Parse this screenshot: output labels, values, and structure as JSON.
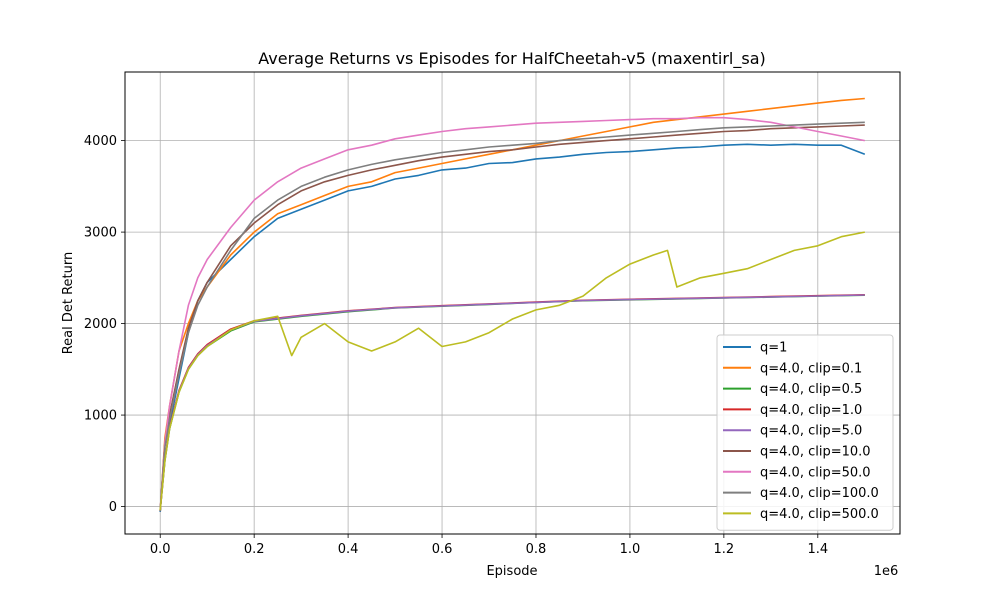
{
  "chart_data": {
    "type": "line",
    "title": "Average Returns vs Episodes for HalfCheetah-v5 (maxentirl_sa)",
    "xlabel": "Episode",
    "ylabel": "Real Det Return",
    "x_offset_label": "1e6",
    "xlim": [
      -0.075,
      1.575
    ],
    "ylim": [
      -300,
      4750
    ],
    "x_ticks": [
      0.0,
      0.2,
      0.4,
      0.6,
      0.8,
      1.0,
      1.2,
      1.4
    ],
    "x_tick_labels": [
      "0.0",
      "0.2",
      "0.4",
      "0.6",
      "0.8",
      "1.0",
      "1.2",
      "1.4"
    ],
    "y_ticks": [
      0,
      1000,
      2000,
      3000,
      4000
    ],
    "y_tick_labels": [
      "0",
      "1000",
      "2000",
      "3000",
      "4000"
    ],
    "grid": true,
    "legend_position": "lower-right",
    "series": [
      {
        "name": "q=1",
        "color": "#1f77b4",
        "x": [
          0,
          0.01,
          0.02,
          0.04,
          0.06,
          0.08,
          0.1,
          0.15,
          0.2,
          0.25,
          0.3,
          0.35,
          0.4,
          0.45,
          0.5,
          0.55,
          0.6,
          0.65,
          0.7,
          0.75,
          0.8,
          0.85,
          0.9,
          0.95,
          1.0,
          1.05,
          1.1,
          1.15,
          1.2,
          1.25,
          1.3,
          1.35,
          1.4,
          1.45,
          1.5
        ],
        "y": [
          -60,
          700,
          900,
          1400,
          1900,
          2250,
          2450,
          2700,
          2950,
          3150,
          3250,
          3350,
          3450,
          3500,
          3580,
          3620,
          3680,
          3700,
          3750,
          3760,
          3800,
          3820,
          3850,
          3870,
          3880,
          3900,
          3920,
          3930,
          3950,
          3960,
          3950,
          3960,
          3950,
          3950,
          3850
        ]
      },
      {
        "name": "q=4.0, clip=0.1",
        "color": "#ff7f0e",
        "x": [
          0,
          0.01,
          0.02,
          0.04,
          0.06,
          0.08,
          0.1,
          0.15,
          0.2,
          0.25,
          0.3,
          0.35,
          0.4,
          0.45,
          0.5,
          0.55,
          0.6,
          0.65,
          0.7,
          0.75,
          0.8,
          0.85,
          0.9,
          0.95,
          1.0,
          1.05,
          1.1,
          1.15,
          1.2,
          1.25,
          1.3,
          1.35,
          1.4,
          1.45,
          1.5
        ],
        "y": [
          -50,
          750,
          1100,
          1700,
          2000,
          2250,
          2400,
          2750,
          3000,
          3200,
          3300,
          3400,
          3500,
          3550,
          3650,
          3700,
          3750,
          3800,
          3850,
          3900,
          3950,
          4000,
          4050,
          4100,
          4150,
          4200,
          4230,
          4260,
          4290,
          4320,
          4350,
          4380,
          4410,
          4440,
          4460
        ]
      },
      {
        "name": "q=4.0, clip=0.5",
        "color": "#2ca02c",
        "x": [
          0,
          0.01,
          0.02,
          0.04,
          0.06,
          0.08,
          0.1,
          0.15,
          0.2,
          0.3,
          0.4,
          0.5,
          0.6,
          0.7,
          0.8,
          0.9,
          1.0,
          1.1,
          1.2,
          1.3,
          1.4,
          1.5
        ],
        "y": [
          -40,
          500,
          850,
          1250,
          1500,
          1650,
          1750,
          1920,
          2020,
          2080,
          2130,
          2170,
          2190,
          2210,
          2230,
          2250,
          2260,
          2270,
          2280,
          2290,
          2300,
          2310
        ]
      },
      {
        "name": "q=4.0, clip=1.0",
        "color": "#d62728",
        "x": [
          0,
          0.01,
          0.02,
          0.04,
          0.06,
          0.08,
          0.1,
          0.15,
          0.2,
          0.3,
          0.4,
          0.5,
          0.6,
          0.7,
          0.8,
          0.9,
          1.0,
          1.1,
          1.2,
          1.3,
          1.4,
          1.5
        ],
        "y": [
          -40,
          520,
          870,
          1270,
          1520,
          1670,
          1770,
          1940,
          2030,
          2090,
          2140,
          2175,
          2195,
          2215,
          2235,
          2255,
          2265,
          2275,
          2285,
          2295,
          2305,
          2315
        ]
      },
      {
        "name": "q=4.0, clip=5.0",
        "color": "#9467bd",
        "x": [
          0,
          0.01,
          0.02,
          0.04,
          0.06,
          0.08,
          0.1,
          0.15,
          0.2,
          0.3,
          0.4,
          0.5,
          0.6,
          0.7,
          0.8,
          0.9,
          1.0,
          1.1,
          1.2,
          1.3,
          1.4,
          1.5
        ],
        "y": [
          -40,
          510,
          860,
          1260,
          1510,
          1660,
          1760,
          1930,
          2025,
          2085,
          2135,
          2172,
          2192,
          2212,
          2232,
          2252,
          2262,
          2272,
          2282,
          2292,
          2302,
          2312
        ]
      },
      {
        "name": "q=4.0, clip=10.0",
        "color": "#8c564b",
        "x": [
          0,
          0.01,
          0.02,
          0.04,
          0.06,
          0.08,
          0.1,
          0.15,
          0.2,
          0.25,
          0.3,
          0.35,
          0.4,
          0.45,
          0.5,
          0.55,
          0.6,
          0.65,
          0.7,
          0.75,
          0.8,
          0.85,
          0.9,
          0.95,
          1.0,
          1.05,
          1.1,
          1.15,
          1.2,
          1.25,
          1.3,
          1.35,
          1.4,
          1.45,
          1.5
        ],
        "y": [
          -50,
          700,
          1000,
          1500,
          1950,
          2250,
          2450,
          2850,
          3100,
          3300,
          3450,
          3550,
          3620,
          3680,
          3730,
          3780,
          3820,
          3850,
          3880,
          3900,
          3930,
          3960,
          3980,
          4000,
          4020,
          4040,
          4060,
          4080,
          4100,
          4110,
          4130,
          4140,
          4150,
          4160,
          4170
        ]
      },
      {
        "name": "q=4.0, clip=50.0",
        "color": "#e377c2",
        "x": [
          0,
          0.01,
          0.02,
          0.04,
          0.06,
          0.08,
          0.1,
          0.15,
          0.2,
          0.25,
          0.3,
          0.35,
          0.4,
          0.45,
          0.5,
          0.55,
          0.6,
          0.65,
          0.7,
          0.75,
          0.8,
          0.85,
          0.9,
          0.95,
          1.0,
          1.05,
          1.1,
          1.15,
          1.2,
          1.25,
          1.3,
          1.35,
          1.4,
          1.45,
          1.5
        ],
        "y": [
          -50,
          700,
          1100,
          1700,
          2200,
          2500,
          2700,
          3050,
          3350,
          3550,
          3700,
          3800,
          3900,
          3950,
          4020,
          4060,
          4100,
          4130,
          4150,
          4170,
          4190,
          4200,
          4210,
          4220,
          4230,
          4240,
          4240,
          4250,
          4250,
          4230,
          4200,
          4150,
          4100,
          4050,
          4000
        ]
      },
      {
        "name": "q=4.0, clip=100.0",
        "color": "#7f7f7f",
        "x": [
          0,
          0.01,
          0.02,
          0.04,
          0.06,
          0.08,
          0.1,
          0.15,
          0.2,
          0.25,
          0.3,
          0.35,
          0.4,
          0.45,
          0.5,
          0.55,
          0.6,
          0.65,
          0.7,
          0.75,
          0.8,
          0.85,
          0.9,
          0.95,
          1.0,
          1.05,
          1.1,
          1.15,
          1.2,
          1.25,
          1.3,
          1.35,
          1.4,
          1.45,
          1.5
        ],
        "y": [
          -50,
          650,
          950,
          1450,
          1900,
          2200,
          2400,
          2800,
          3150,
          3350,
          3500,
          3600,
          3680,
          3740,
          3790,
          3830,
          3870,
          3900,
          3930,
          3950,
          3970,
          4000,
          4020,
          4040,
          4060,
          4080,
          4100,
          4120,
          4140,
          4150,
          4160,
          4170,
          4180,
          4190,
          4200
        ]
      },
      {
        "name": "q=4.0, clip=500.0",
        "color": "#bcbd22",
        "x": [
          0,
          0.01,
          0.02,
          0.04,
          0.06,
          0.08,
          0.1,
          0.15,
          0.2,
          0.25,
          0.28,
          0.3,
          0.35,
          0.4,
          0.45,
          0.5,
          0.55,
          0.6,
          0.65,
          0.7,
          0.75,
          0.8,
          0.85,
          0.9,
          0.95,
          1.0,
          1.05,
          1.08,
          1.1,
          1.15,
          1.2,
          1.25,
          1.3,
          1.35,
          1.4,
          1.45,
          1.5
        ],
        "y": [
          -40,
          500,
          850,
          1250,
          1500,
          1650,
          1750,
          1930,
          2030,
          2080,
          1650,
          1850,
          2000,
          1800,
          1700,
          1800,
          1950,
          1750,
          1800,
          1900,
          2050,
          2150,
          2200,
          2300,
          2500,
          2650,
          2750,
          2800,
          2400,
          2500,
          2550,
          2600,
          2700,
          2800,
          2850,
          2950,
          3000
        ]
      }
    ]
  }
}
